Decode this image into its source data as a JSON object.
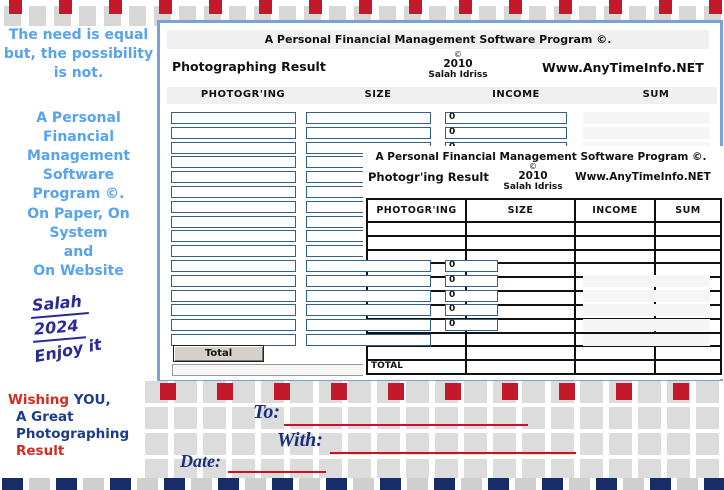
{
  "palette": {
    "border_red": "#c31a2b",
    "border_navy": "#162d68",
    "border_gray": "#d7d7d7",
    "sky_blue": "#56a3f0",
    "ink_blue": "#2b2b96",
    "window_border_blue": "#79a3d6",
    "field_border_blue": "#336089",
    "underline_red": "#cc1122",
    "mail_navy": "#1b2f80",
    "wishing_red": "#d62b1f",
    "wishing_navy": "#1d3c8f"
  },
  "sidebar": {
    "group1": [
      "The need is equal",
      "but, the possibility",
      "is not."
    ],
    "group2": [
      "A Personal Financial",
      "Management Software",
      "Program ©."
    ],
    "group3": [
      "On Paper, On System",
      "and",
      "On Website"
    ],
    "signature_name": "Salah",
    "signature_year": "2024",
    "signature_note": "Enjoy it"
  },
  "window1": {
    "title": "A Personal Financial Management Software Program ©.",
    "result_label": "Photographing Result",
    "copyright_symbol": "©",
    "year": "2010",
    "author": "Salah Idriss",
    "website": "Www.AnyTimeInfo.NET",
    "columns": [
      "PHOTOGR'ING",
      "SIZE",
      "INCOME",
      "SUM"
    ],
    "income_default": "0",
    "row_count": 16,
    "total_button_label": "Total"
  },
  "window2": {
    "title": "A Personal Financial Management Software Program ©.",
    "result_label": "Photogr'ing Result",
    "copyright_symbol": "©",
    "year": "2010",
    "author": "Salah Idriss",
    "website": "Www.AnyTimeInfo.NET",
    "columns": [
      "PHOTOGR'ING",
      "SIZE",
      "INCOME",
      "SUM"
    ],
    "body_row_count": 10,
    "total_label": "TOTAL"
  },
  "wishing": {
    "word1": "Wishing",
    "word2": " YOU,",
    "line2": "A Great",
    "line3": "Photographing",
    "line4": "Result"
  },
  "mail": {
    "to_label": "To:",
    "with_label": "With:",
    "date_label": "Date:"
  }
}
